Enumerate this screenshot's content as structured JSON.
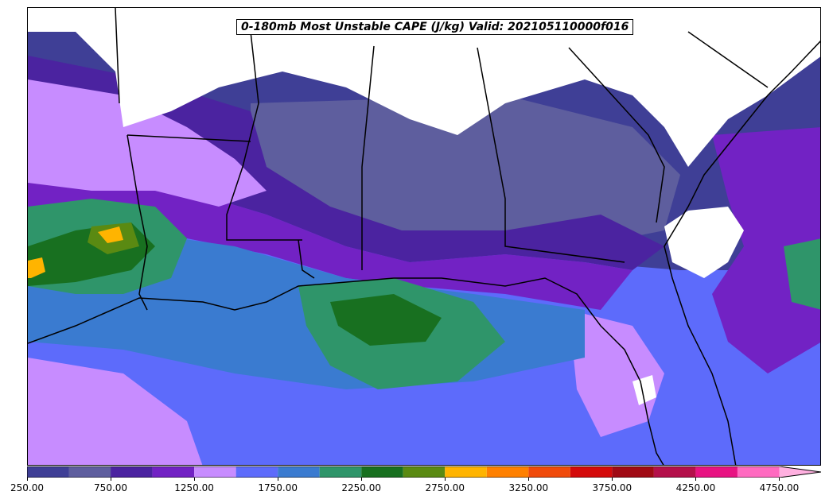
{
  "title": "0-180mb Most Unstable CAPE (J/kg) Valid: 202105110000f016",
  "colorbar": {
    "bins": [
      {
        "from": 250,
        "to": 500,
        "color": "#3f3f96"
      },
      {
        "from": 500,
        "to": 750,
        "color": "#5e5e9e"
      },
      {
        "from": 750,
        "to": 1000,
        "color": "#4b23a0"
      },
      {
        "from": 1000,
        "to": 1250,
        "color": "#7222c4"
      },
      {
        "from": 1250,
        "to": 1500,
        "color": "#c78cff"
      },
      {
        "from": 1500,
        "to": 1750,
        "color": "#5d6bfb"
      },
      {
        "from": 1750,
        "to": 2000,
        "color": "#3a7bd0"
      },
      {
        "from": 2000,
        "to": 2250,
        "color": "#2f956a"
      },
      {
        "from": 2250,
        "to": 2500,
        "color": "#187020"
      },
      {
        "from": 2500,
        "to": 2750,
        "color": "#5a8a12"
      },
      {
        "from": 2750,
        "to": 3000,
        "color": "#ffb400"
      },
      {
        "from": 3000,
        "to": 3250,
        "color": "#ff8000"
      },
      {
        "from": 3250,
        "to": 3500,
        "color": "#f04a0a"
      },
      {
        "from": 3500,
        "to": 3750,
        "color": "#d40a0a"
      },
      {
        "from": 3750,
        "to": 4000,
        "color": "#a00a14"
      },
      {
        "from": 4000,
        "to": 4250,
        "color": "#b4104a"
      },
      {
        "from": 4250,
        "to": 4500,
        "color": "#e81282"
      },
      {
        "from": 4500,
        "to": 4750,
        "color": "#ff6ac0"
      },
      {
        "from": 4750,
        "to": 5000,
        "color": "#ffb0e0"
      }
    ],
    "tick_labels": [
      "250.00",
      "750.00",
      "1250.00",
      "1750.00",
      "2250.00",
      "2750.00",
      "3250.00",
      "3750.00",
      "4250.00",
      "4750.00"
    ],
    "tick_values": [
      250,
      750,
      1250,
      1750,
      2250,
      2750,
      3250,
      3750,
      4250,
      4750
    ],
    "range": [
      250,
      5000
    ],
    "extend": "max"
  },
  "colors": {
    "no_data": "#ffffff",
    "borders": "#000000"
  }
}
